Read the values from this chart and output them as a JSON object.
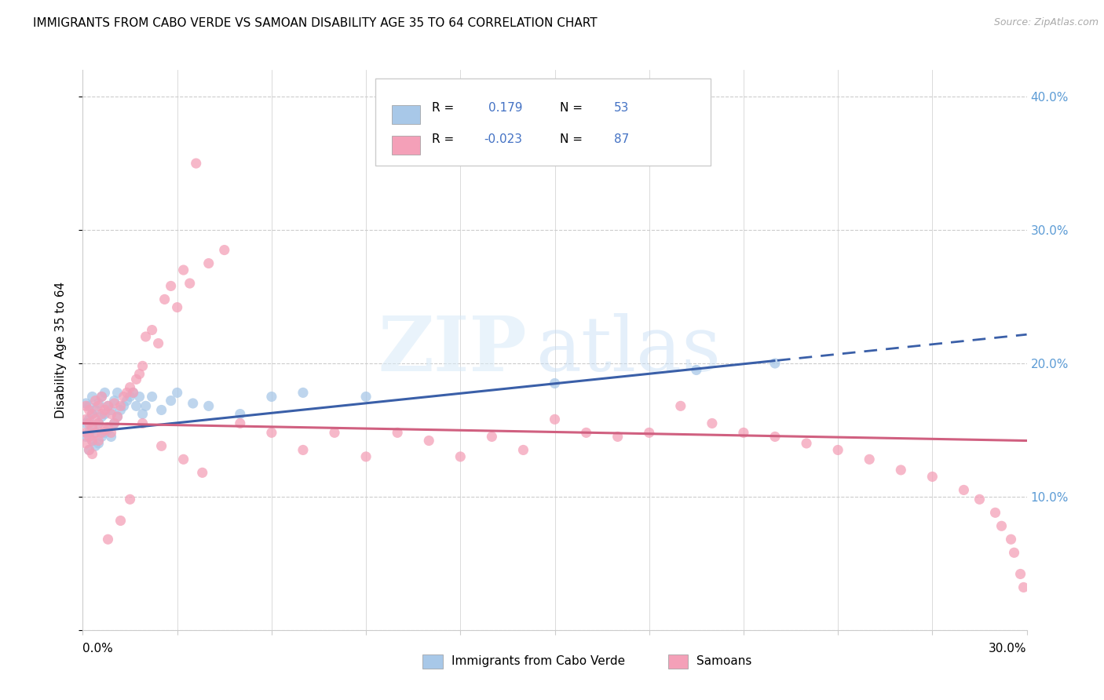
{
  "title": "IMMIGRANTS FROM CABO VERDE VS SAMOAN DISABILITY AGE 35 TO 64 CORRELATION CHART",
  "source": "Source: ZipAtlas.com",
  "ylabel": "Disability Age 35 to 64",
  "x_lim": [
    0.0,
    0.3
  ],
  "y_lim": [
    0.0,
    0.42
  ],
  "y_ticks": [
    0.0,
    0.1,
    0.2,
    0.3,
    0.4
  ],
  "y_tick_labels_right": [
    "",
    "10.0%",
    "20.0%",
    "30.0%",
    "40.0%"
  ],
  "cabo_verde_color": "#a8c8e8",
  "samoan_color": "#f4a0b8",
  "cabo_verde_line_color": "#3a5fa8",
  "samoan_line_color": "#d06080",
  "cabo_verde_R": 0.179,
  "cabo_verde_N": 53,
  "samoan_R": -0.023,
  "samoan_N": 87,
  "cabo_verde_x": [
    0.001,
    0.001,
    0.001,
    0.002,
    0.002,
    0.002,
    0.002,
    0.003,
    0.003,
    0.003,
    0.003,
    0.004,
    0.004,
    0.004,
    0.005,
    0.005,
    0.005,
    0.006,
    0.006,
    0.006,
    0.007,
    0.007,
    0.007,
    0.008,
    0.008,
    0.009,
    0.009,
    0.01,
    0.01,
    0.011,
    0.011,
    0.012,
    0.013,
    0.014,
    0.015,
    0.016,
    0.017,
    0.018,
    0.019,
    0.02,
    0.022,
    0.025,
    0.028,
    0.03,
    0.035,
    0.04,
    0.05,
    0.06,
    0.07,
    0.09,
    0.15,
    0.195,
    0.22
  ],
  "cabo_verde_y": [
    0.145,
    0.155,
    0.17,
    0.135,
    0.148,
    0.158,
    0.168,
    0.142,
    0.152,
    0.162,
    0.175,
    0.138,
    0.148,
    0.165,
    0.14,
    0.155,
    0.17,
    0.145,
    0.16,
    0.175,
    0.148,
    0.162,
    0.178,
    0.15,
    0.168,
    0.145,
    0.165,
    0.155,
    0.172,
    0.16,
    0.178,
    0.165,
    0.168,
    0.172,
    0.175,
    0.178,
    0.168,
    0.175,
    0.162,
    0.168,
    0.175,
    0.165,
    0.172,
    0.178,
    0.17,
    0.168,
    0.162,
    0.175,
    0.178,
    0.175,
    0.185,
    0.195,
    0.2
  ],
  "samoan_x": [
    0.001,
    0.001,
    0.001,
    0.001,
    0.002,
    0.002,
    0.002,
    0.002,
    0.003,
    0.003,
    0.003,
    0.003,
    0.004,
    0.004,
    0.004,
    0.005,
    0.005,
    0.005,
    0.006,
    0.006,
    0.006,
    0.007,
    0.007,
    0.008,
    0.008,
    0.009,
    0.009,
    0.01,
    0.01,
    0.011,
    0.012,
    0.013,
    0.014,
    0.015,
    0.016,
    0.017,
    0.018,
    0.019,
    0.02,
    0.022,
    0.024,
    0.026,
    0.028,
    0.03,
    0.032,
    0.034,
    0.036,
    0.04,
    0.045,
    0.05,
    0.06,
    0.07,
    0.08,
    0.09,
    0.1,
    0.11,
    0.12,
    0.13,
    0.14,
    0.15,
    0.16,
    0.17,
    0.18,
    0.19,
    0.2,
    0.21,
    0.22,
    0.23,
    0.24,
    0.25,
    0.26,
    0.27,
    0.28,
    0.285,
    0.29,
    0.292,
    0.295,
    0.296,
    0.298,
    0.299,
    0.019,
    0.025,
    0.032,
    0.038,
    0.015,
    0.012,
    0.008
  ],
  "samoan_y": [
    0.148,
    0.158,
    0.168,
    0.14,
    0.145,
    0.155,
    0.165,
    0.135,
    0.142,
    0.152,
    0.162,
    0.132,
    0.148,
    0.158,
    0.172,
    0.142,
    0.155,
    0.168,
    0.148,
    0.162,
    0.175,
    0.15,
    0.165,
    0.152,
    0.168,
    0.148,
    0.162,
    0.155,
    0.17,
    0.16,
    0.168,
    0.175,
    0.178,
    0.182,
    0.178,
    0.188,
    0.192,
    0.198,
    0.22,
    0.225,
    0.215,
    0.248,
    0.258,
    0.242,
    0.27,
    0.26,
    0.35,
    0.275,
    0.285,
    0.155,
    0.148,
    0.135,
    0.148,
    0.13,
    0.148,
    0.142,
    0.13,
    0.145,
    0.135,
    0.158,
    0.148,
    0.145,
    0.148,
    0.168,
    0.155,
    0.148,
    0.145,
    0.14,
    0.135,
    0.128,
    0.12,
    0.115,
    0.105,
    0.098,
    0.088,
    0.078,
    0.068,
    0.058,
    0.042,
    0.032,
    0.155,
    0.138,
    0.128,
    0.118,
    0.098,
    0.082,
    0.068
  ]
}
